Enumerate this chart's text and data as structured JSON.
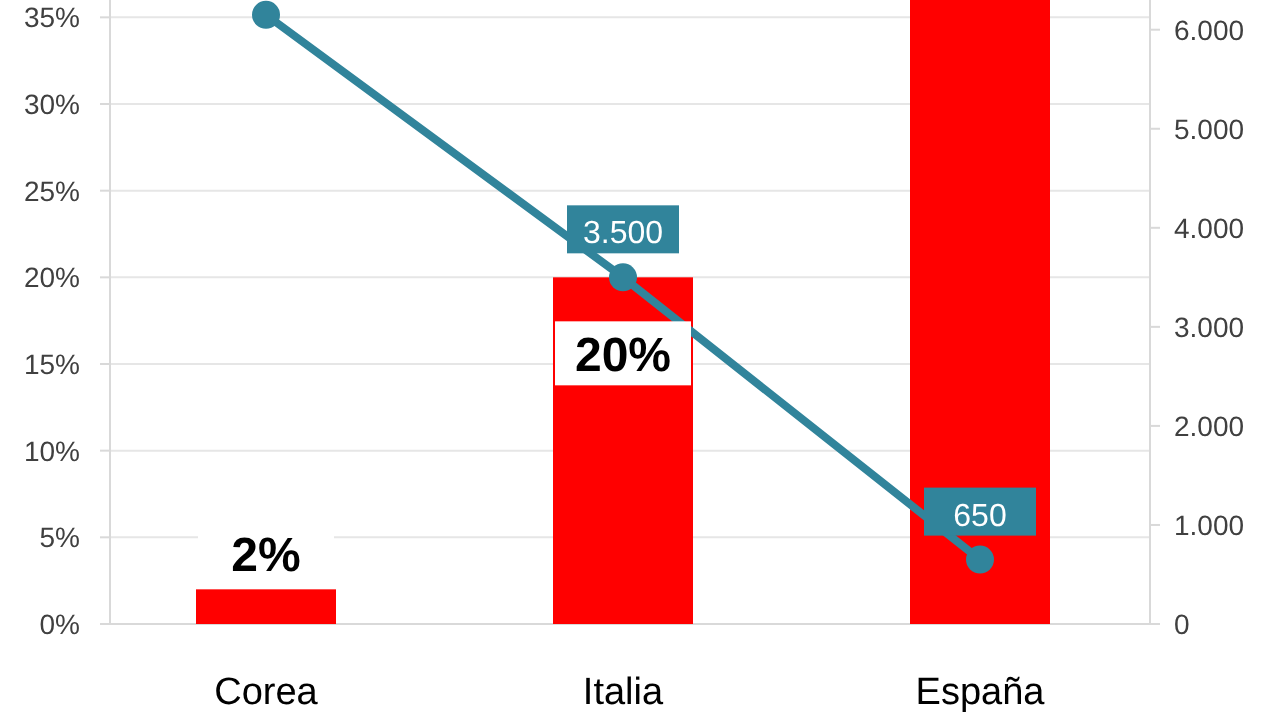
{
  "chart_data": {
    "type": "bar",
    "categories": [
      "Corea",
      "Italia",
      "España"
    ],
    "series": [
      {
        "color": "#ff0000",
        "values": [
          2,
          20,
          36
        ],
        "value_labels": [
          "2%",
          "20%",
          null
        ]
      },
      {
        "type": "line",
        "axis": "y2",
        "color": "#31849b",
        "values": [
          6150,
          3500,
          650
        ],
        "value_labels": [
          null,
          "3.500",
          "650"
        ],
        "marker": "circle"
      }
    ],
    "ylim": [
      0,
      36
    ],
    "yticks": [
      {
        "value": 0,
        "label": "0%"
      },
      {
        "value": 5,
        "label": "5%"
      },
      {
        "value": 10,
        "label": "10%"
      },
      {
        "value": 15,
        "label": "15%"
      },
      {
        "value": 20,
        "label": "20%"
      },
      {
        "value": 25,
        "label": "25%"
      },
      {
        "value": 30,
        "label": "30%"
      },
      {
        "value": 35,
        "label": "35%"
      }
    ],
    "y2lim": [
      0,
      6300
    ],
    "y2ticks": [
      0,
      {
        "value": 1000,
        "label": "1.000"
      },
      {
        "value": 2000,
        "label": "2.000"
      },
      {
        "value": 3000,
        "label": "3.000"
      },
      {
        "value": 4000,
        "label": "4.000"
      },
      {
        "value": 5000,
        "label": "5.000"
      },
      {
        "value": 6000,
        "label": "6.000"
      }
    ],
    "grid": "y"
  }
}
